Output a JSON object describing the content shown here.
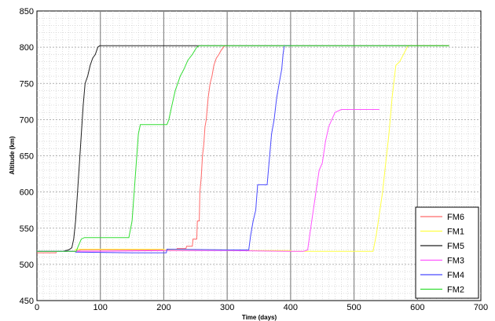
{
  "chart_data": {
    "type": "line",
    "title": "",
    "xlabel": "Time (days)",
    "ylabel": "Altitude (km)",
    "xlim": [
      0,
      700
    ],
    "ylim": [
      450,
      850
    ],
    "x_ticks": [
      0,
      100,
      200,
      300,
      400,
      500,
      600,
      700
    ],
    "y_ticks": [
      450,
      500,
      550,
      600,
      650,
      700,
      750,
      800,
      850
    ],
    "grid": true,
    "legend_position": "bottom-right",
    "series": [
      {
        "name": "FM6",
        "color": "#ff6a6a",
        "points": [
          [
            0,
            516
          ],
          [
            30,
            516
          ],
          [
            31,
            518
          ],
          [
            60,
            518
          ],
          [
            70,
            520
          ],
          [
            220,
            520
          ],
          [
            221,
            522
          ],
          [
            235,
            522
          ],
          [
            236,
            525
          ],
          [
            245,
            525
          ],
          [
            246,
            535
          ],
          [
            252,
            535
          ],
          [
            253,
            560
          ],
          [
            256,
            560
          ],
          [
            257,
            600
          ],
          [
            259,
            620
          ],
          [
            261,
            650
          ],
          [
            263,
            665
          ],
          [
            265,
            690
          ],
          [
            267,
            700
          ],
          [
            270,
            730
          ],
          [
            273,
            750
          ],
          [
            276,
            760
          ],
          [
            279,
            775
          ],
          [
            283,
            785
          ],
          [
            287,
            790
          ],
          [
            290,
            795
          ],
          [
            296,
            802
          ],
          [
            300,
            802
          ]
        ]
      },
      {
        "name": "FM1",
        "color": "#ffff44",
        "points": [
          [
            0,
            518
          ],
          [
            60,
            518
          ],
          [
            61,
            521
          ],
          [
            200,
            521
          ],
          [
            201,
            520
          ],
          [
            300,
            520
          ],
          [
            301,
            519
          ],
          [
            400,
            519
          ],
          [
            401,
            518
          ],
          [
            530,
            518
          ],
          [
            535,
            540
          ],
          [
            540,
            570
          ],
          [
            545,
            600
          ],
          [
            550,
            640
          ],
          [
            555,
            680
          ],
          [
            560,
            730
          ],
          [
            566,
            775
          ],
          [
            572,
            780
          ],
          [
            578,
            790
          ],
          [
            585,
            802
          ],
          [
            650,
            802
          ]
        ]
      },
      {
        "name": "FM5",
        "color": "#202020",
        "points": [
          [
            0,
            518
          ],
          [
            40,
            518
          ],
          [
            50,
            520
          ],
          [
            55,
            523
          ],
          [
            58,
            535
          ],
          [
            61,
            560
          ],
          [
            64,
            600
          ],
          [
            67,
            640
          ],
          [
            70,
            680
          ],
          [
            73,
            720
          ],
          [
            76,
            750
          ],
          [
            80,
            760
          ],
          [
            84,
            775
          ],
          [
            88,
            785
          ],
          [
            92,
            790
          ],
          [
            96,
            800
          ],
          [
            99,
            802
          ],
          [
            650,
            802
          ]
        ]
      },
      {
        "name": "FM3",
        "color": "#ff55ff",
        "points": [
          [
            0,
            518
          ],
          [
            100,
            518
          ],
          [
            200,
            519
          ],
          [
            300,
            519
          ],
          [
            400,
            518
          ],
          [
            420,
            518
          ],
          [
            427,
            520
          ],
          [
            430,
            540
          ],
          [
            435,
            570
          ],
          [
            440,
            600
          ],
          [
            445,
            630
          ],
          [
            450,
            640
          ],
          [
            455,
            670
          ],
          [
            460,
            690
          ],
          [
            465,
            700
          ],
          [
            470,
            710
          ],
          [
            480,
            714
          ],
          [
            540,
            714
          ]
        ]
      },
      {
        "name": "FM4",
        "color": "#4a4aff",
        "points": [
          [
            0,
            518
          ],
          [
            60,
            518
          ],
          [
            61,
            517
          ],
          [
            150,
            516
          ],
          [
            204,
            516
          ],
          [
            205,
            521
          ],
          [
            300,
            520
          ],
          [
            334,
            520
          ],
          [
            337,
            540
          ],
          [
            341,
            560
          ],
          [
            345,
            575
          ],
          [
            348,
            610
          ],
          [
            363,
            610
          ],
          [
            366,
            640
          ],
          [
            370,
            680
          ],
          [
            374,
            700
          ],
          [
            378,
            730
          ],
          [
            382,
            750
          ],
          [
            386,
            770
          ],
          [
            388,
            790
          ],
          [
            390,
            802
          ],
          [
            400,
            802
          ]
        ]
      },
      {
        "name": "FM2",
        "color": "#33dd33",
        "points": [
          [
            0,
            518
          ],
          [
            62,
            518
          ],
          [
            65,
            525
          ],
          [
            70,
            535
          ],
          [
            75,
            537
          ],
          [
            145,
            537
          ],
          [
            150,
            560
          ],
          [
            155,
            620
          ],
          [
            160,
            680
          ],
          [
            163,
            693
          ],
          [
            205,
            693
          ],
          [
            208,
            700
          ],
          [
            213,
            720
          ],
          [
            218,
            740
          ],
          [
            222,
            750
          ],
          [
            226,
            760
          ],
          [
            232,
            770
          ],
          [
            238,
            782
          ],
          [
            245,
            790
          ],
          [
            252,
            800
          ],
          [
            256,
            802
          ],
          [
            650,
            802
          ]
        ]
      }
    ]
  }
}
